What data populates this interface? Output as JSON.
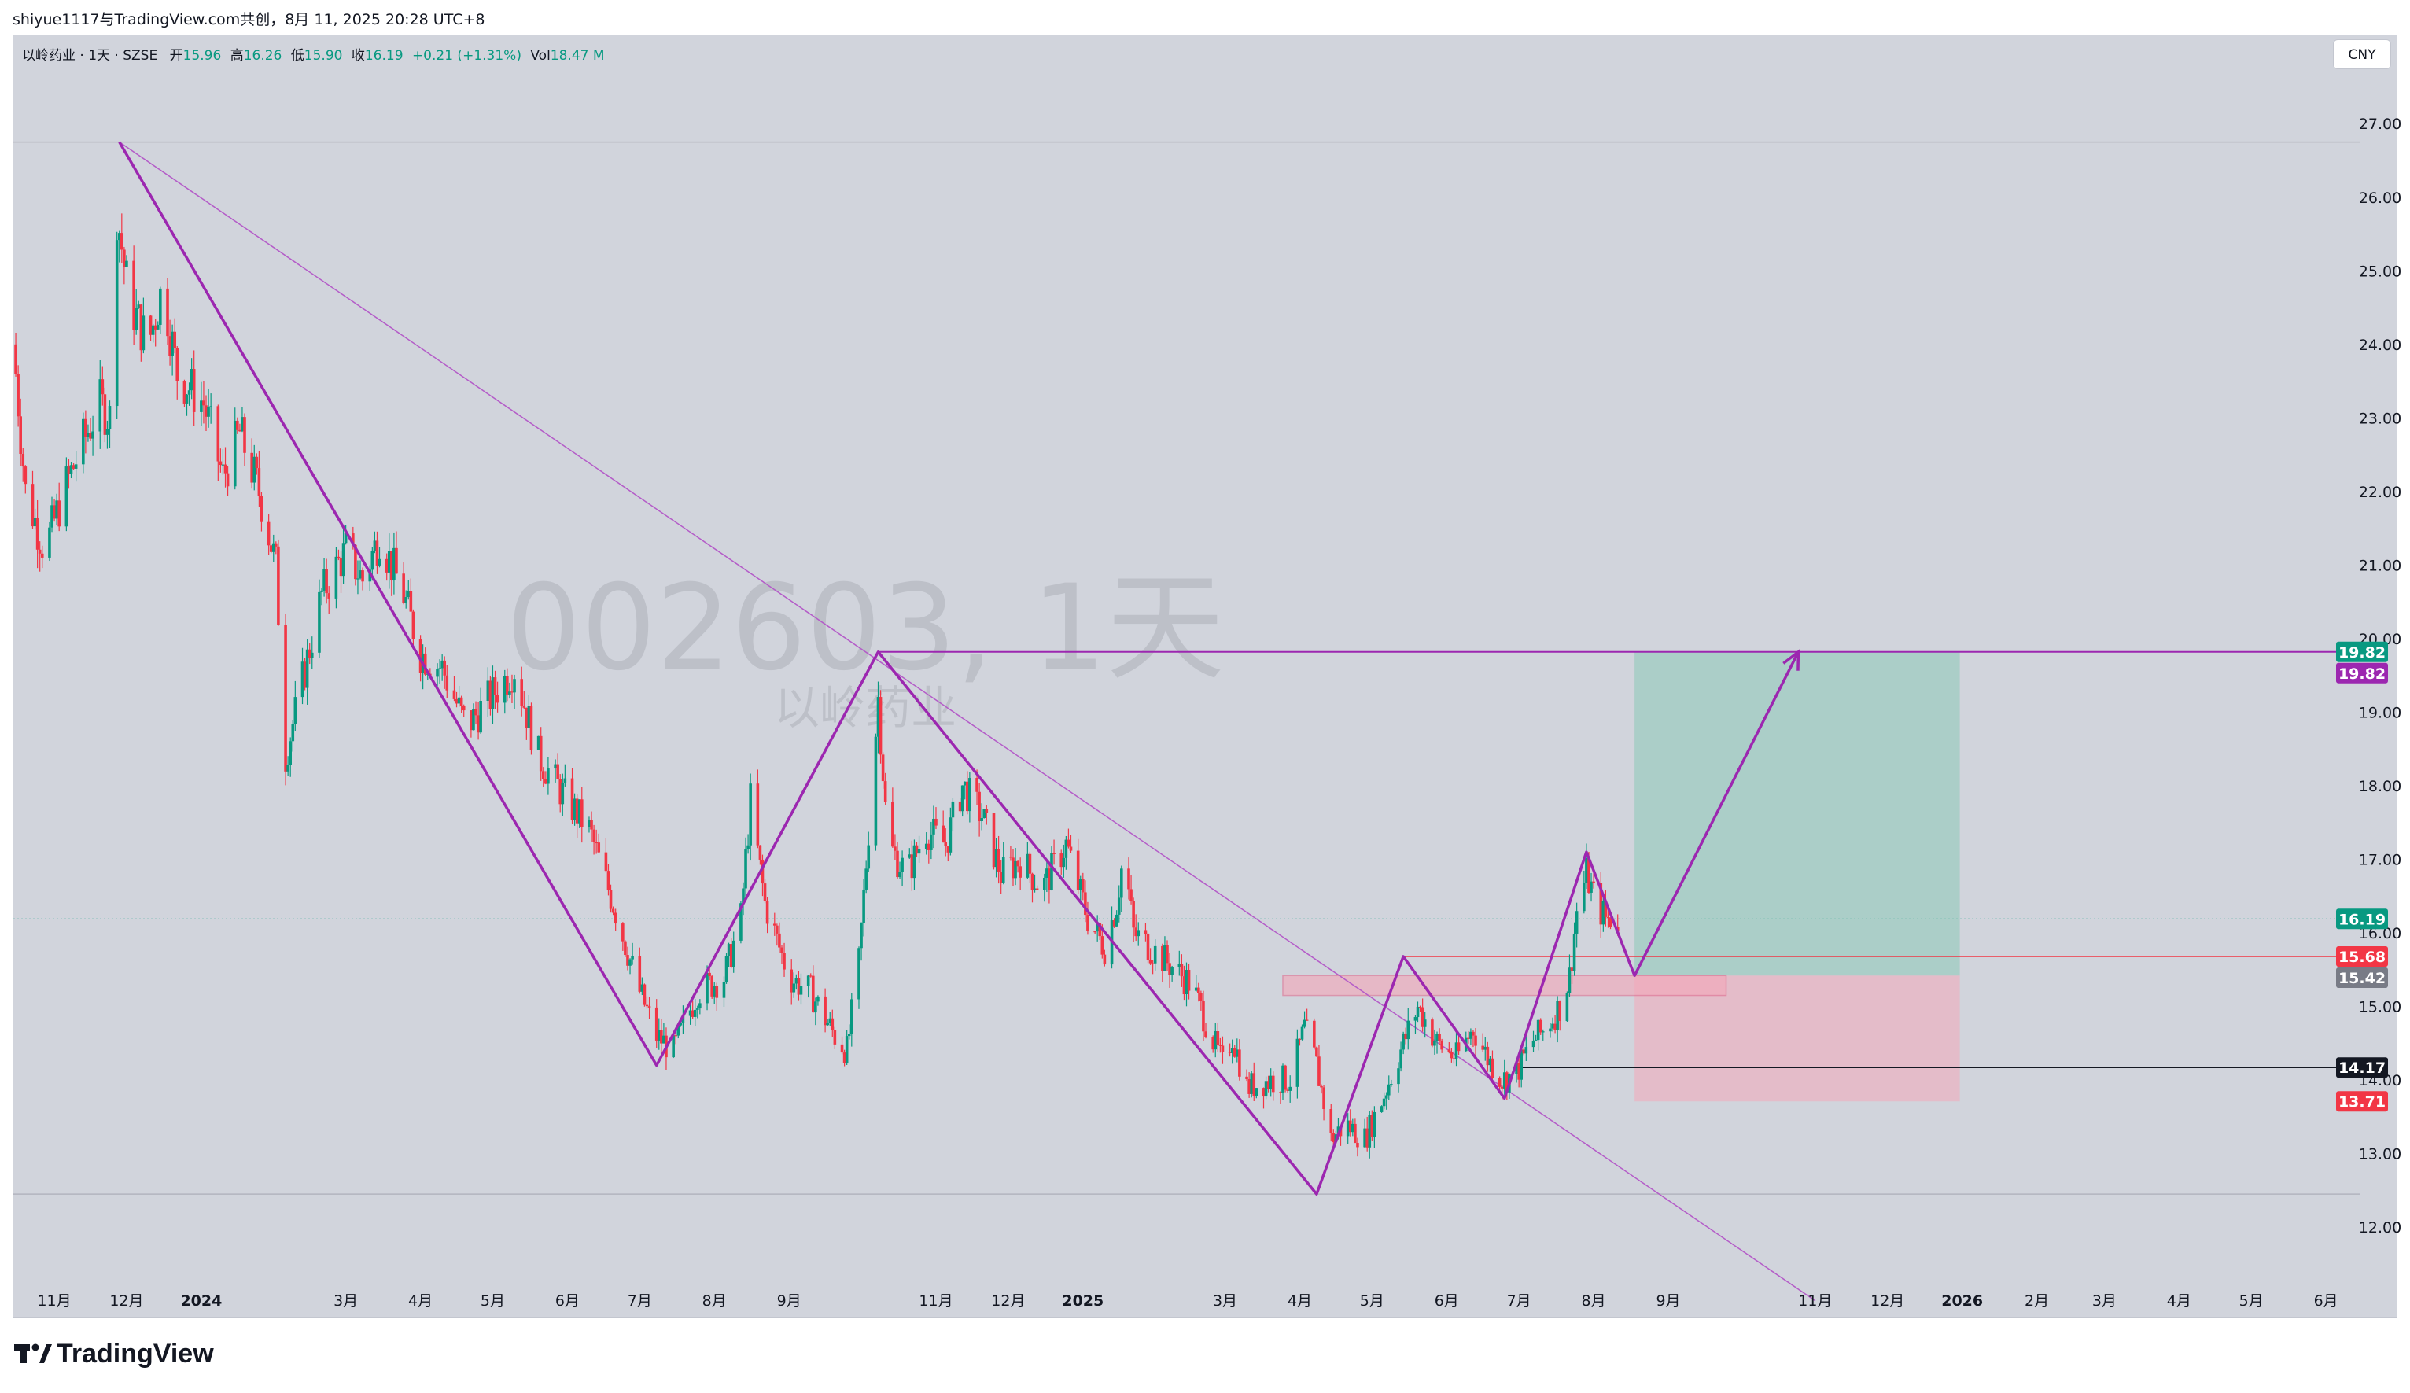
{
  "header": {
    "share_text": "shiyue1117与TradingView.com共创，8月 11, 2025 20:28 UTC+8"
  },
  "legend": {
    "symbol": "以岭药业 · 1天 · SZSE",
    "open_label": "开",
    "open": "15.96",
    "high_label": "高",
    "high": "16.26",
    "low_label": "低",
    "low": "15.90",
    "close_label": "收",
    "close": "16.19",
    "change": "+0.21 (+1.31%)",
    "vol_label": "Vol",
    "vol": "18.47 M"
  },
  "currency": "CNY",
  "watermark": {
    "main": "002603, 1天",
    "sub": "以岭药业"
  },
  "brand": {
    "name": "TradingView"
  },
  "colors": {
    "up": "#089981",
    "down": "#f23645",
    "pattern": "#9c27b0",
    "target_zone": "#a5d6a7",
    "stop_zone": "#f8bbd0",
    "background": "#d1d4dc"
  },
  "chart_data": {
    "type": "candlestick",
    "ylim": [
      11.2,
      28.2
    ],
    "y_ticks": [
      "12.00",
      "13.00",
      "14.00",
      "15.00",
      "16.00",
      "17.00",
      "18.00",
      "19.00",
      "20.00",
      "21.00",
      "22.00",
      "23.00",
      "24.00",
      "25.00",
      "26.00",
      "27.00"
    ],
    "x_ticks": [
      "11月",
      "12月",
      "2024",
      "3月",
      "4月",
      "5月",
      "6月",
      "7月",
      "8月",
      "9月",
      "11月",
      "12月",
      "2025",
      "3月",
      "4月",
      "5月",
      "6月",
      "7月",
      "8月",
      "9月",
      "11月",
      "12月",
      "2026",
      "2月",
      "3月",
      "4月",
      "5月",
      "6月"
    ],
    "x_ticks_bold": [
      "2024",
      "2025",
      "2026"
    ],
    "x_range": [
      "2023-10-15",
      "2026-06-15"
    ],
    "x_tick_dates": [
      "2023-11-01",
      "2023-12-01",
      "2024-01-01",
      "2024-03-01",
      "2024-04-01",
      "2024-05-01",
      "2024-06-01",
      "2024-07-01",
      "2024-08-01",
      "2024-09-01",
      "2024-11-01",
      "2024-12-01",
      "2025-01-01",
      "2025-03-01",
      "2025-04-01",
      "2025-05-01",
      "2025-06-01",
      "2025-07-01",
      "2025-08-01",
      "2025-09-01",
      "2025-11-01",
      "2025-12-01",
      "2026-01-01",
      "2026-02-01",
      "2026-03-01",
      "2026-04-01",
      "2026-05-01",
      "2026-06-01"
    ],
    "price_path": [
      [
        "2023-10-15",
        24.0
      ],
      [
        "2023-10-20",
        22.0
      ],
      [
        "2023-10-28",
        21.2
      ],
      [
        "2023-11-05",
        22.0
      ],
      [
        "2023-11-12",
        22.6
      ],
      [
        "2023-11-20",
        23.2
      ],
      [
        "2023-11-24",
        23.0
      ],
      [
        "2023-11-27",
        25.8
      ],
      [
        "2023-12-02",
        24.6
      ],
      [
        "2023-12-10",
        24.0
      ],
      [
        "2023-12-16",
        24.8
      ],
      [
        "2023-12-22",
        23.6
      ],
      [
        "2024-01-02",
        23.2
      ],
      [
        "2024-01-10",
        22.2
      ],
      [
        "2024-01-17",
        22.8
      ],
      [
        "2024-01-25",
        22.0
      ],
      [
        "2024-02-01",
        21.0
      ],
      [
        "2024-02-05",
        18.4
      ],
      [
        "2024-02-20",
        20.6
      ],
      [
        "2024-03-01",
        21.2
      ],
      [
        "2024-03-08",
        20.8
      ],
      [
        "2024-03-15",
        21.4
      ],
      [
        "2024-03-25",
        20.6
      ],
      [
        "2024-04-01",
        19.8
      ],
      [
        "2024-04-10",
        19.6
      ],
      [
        "2024-04-20",
        18.8
      ],
      [
        "2024-04-30",
        19.2
      ],
      [
        "2024-05-10",
        19.6
      ],
      [
        "2024-05-20",
        18.4
      ],
      [
        "2024-06-01",
        17.8
      ],
      [
        "2024-06-10",
        17.4
      ],
      [
        "2024-06-20",
        16.4
      ],
      [
        "2024-07-01",
        15.2
      ],
      [
        "2024-07-08",
        14.6
      ],
      [
        "2024-07-15",
        14.4
      ],
      [
        "2024-07-25",
        15.2
      ],
      [
        "2024-08-05",
        15.4
      ],
      [
        "2024-08-12",
        16.2
      ],
      [
        "2024-08-16",
        17.8
      ],
      [
        "2024-08-22",
        16.4
      ],
      [
        "2024-09-01",
        15.4
      ],
      [
        "2024-09-10",
        15.2
      ],
      [
        "2024-09-20",
        14.6
      ],
      [
        "2024-09-25",
        14.4
      ],
      [
        "2024-09-30",
        15.6
      ],
      [
        "2024-10-08",
        19.2
      ],
      [
        "2024-10-12",
        17.2
      ],
      [
        "2024-10-20",
        16.8
      ],
      [
        "2024-10-28",
        17.4
      ],
      [
        "2024-11-05",
        17.2
      ],
      [
        "2024-11-12",
        18.0
      ],
      [
        "2024-11-20",
        17.6
      ],
      [
        "2024-11-28",
        16.8
      ],
      [
        "2024-12-06",
        17.0
      ],
      [
        "2024-12-15",
        16.6
      ],
      [
        "2024-12-25",
        17.2
      ],
      [
        "2025-01-03",
        16.2
      ],
      [
        "2025-01-10",
        15.8
      ],
      [
        "2025-01-15",
        16.4
      ],
      [
        "2025-01-18",
        17.1
      ],
      [
        "2025-01-22",
        16.0
      ],
      [
        "2025-02-05",
        15.6
      ],
      [
        "2025-02-15",
        15.3
      ],
      [
        "2025-02-28",
        14.2
      ],
      [
        "2025-03-04",
        14.6
      ],
      [
        "2025-03-10",
        13.9
      ],
      [
        "2025-03-20",
        14.0
      ],
      [
        "2025-03-28",
        14.0
      ],
      [
        "2025-04-03",
        14.7
      ],
      [
        "2025-04-08",
        14.2
      ],
      [
        "2025-04-14",
        13.2
      ],
      [
        "2025-04-20",
        13.4
      ],
      [
        "2025-04-28",
        13.2
      ],
      [
        "2025-05-06",
        13.8
      ],
      [
        "2025-05-14",
        14.5
      ],
      [
        "2025-05-20",
        15.0
      ],
      [
        "2025-05-28",
        14.5
      ],
      [
        "2025-06-05",
        14.3
      ],
      [
        "2025-06-12",
        14.7
      ],
      [
        "2025-06-18",
        14.3
      ],
      [
        "2025-06-24",
        14.0
      ],
      [
        "2025-06-30",
        14.1
      ],
      [
        "2025-07-06",
        14.5
      ],
      [
        "2025-07-12",
        14.7
      ],
      [
        "2025-07-18",
        15.0
      ],
      [
        "2025-07-22",
        15.4
      ],
      [
        "2025-07-25",
        16.3
      ],
      [
        "2025-07-29",
        16.8
      ],
      [
        "2025-08-02",
        16.4
      ],
      [
        "2025-08-06",
        16.2
      ],
      [
        "2025-08-11",
        16.19
      ]
    ],
    "price_labels": [
      {
        "value": 19.82,
        "text": "19.82",
        "color": "#089981"
      },
      {
        "value": 19.82,
        "text": "19.82",
        "color": "#9c27b0"
      },
      {
        "value": 16.19,
        "text": "16.19",
        "color": "#089981"
      },
      {
        "value": 15.68,
        "text": "15.68",
        "color": "#f23645"
      },
      {
        "value": 15.42,
        "text": "15.42",
        "color": "#787b86"
      },
      {
        "value": 14.17,
        "text": "14.17",
        "color": "#131722"
      },
      {
        "value": 13.71,
        "text": "13.71",
        "color": "#f23645"
      }
    ],
    "position": {
      "entry": 15.42,
      "target": 19.82,
      "stop": 13.71,
      "start": "2025-08-18",
      "end": "2025-12-31"
    },
    "zigzag": [
      [
        "2023-11-28",
        26.75
      ],
      [
        "2024-07-08",
        14.2
      ],
      [
        "2024-10-08",
        19.82
      ],
      [
        "2025-04-08",
        12.45
      ],
      [
        "2025-05-14",
        15.68
      ],
      [
        "2025-06-25",
        13.75
      ],
      [
        "2025-07-29",
        17.1
      ],
      [
        "2025-08-18",
        15.42
      ],
      [
        "2025-10-25",
        19.82
      ]
    ],
    "trend_line": [
      [
        "2023-11-28",
        26.75
      ],
      [
        "2025-11-01",
        11.0
      ]
    ],
    "top_level": 26.75,
    "bottom_level": 12.45,
    "resistance_19_82_start": "2024-10-08",
    "level_15_68_start": "2025-05-14",
    "level_14_17_start": "2025-06-30",
    "consolidation_zone": {
      "start": "2025-03-25",
      "end": "2025-09-25",
      "top": 15.42,
      "bottom": 15.15
    }
  }
}
